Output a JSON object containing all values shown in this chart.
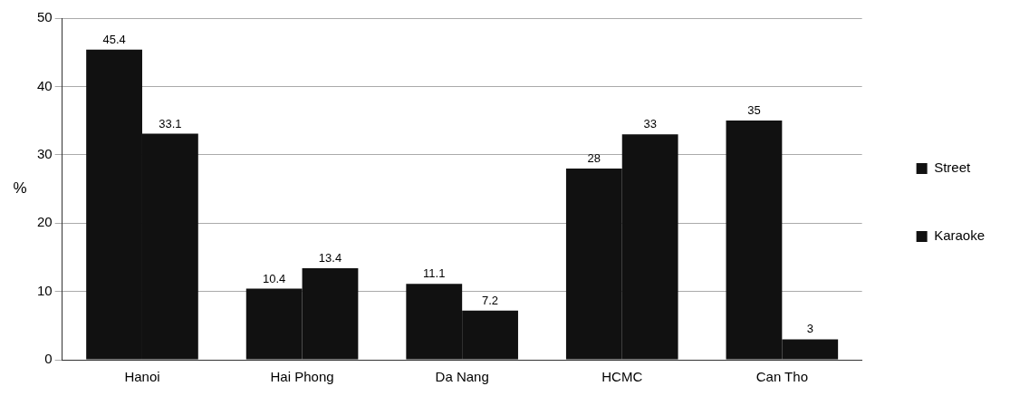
{
  "chart_data": {
    "type": "bar",
    "ylabel": "%",
    "categories": [
      "Hanoi",
      "Hai Phong",
      "Da Nang",
      "HCMC",
      "Can Tho"
    ],
    "series": [
      {
        "name": "Street",
        "color": "#111111",
        "values": [
          45.4,
          10.4,
          11.1,
          28,
          35
        ]
      },
      {
        "name": "Karaoke",
        "color": "#111111",
        "values": [
          33.1,
          13.4,
          7.2,
          33,
          3
        ]
      }
    ],
    "ylim": [
      0,
      50
    ],
    "yticks": [
      0,
      10,
      20,
      30,
      40,
      50
    ],
    "grid": "y",
    "legend": "right",
    "data_labels": true
  }
}
